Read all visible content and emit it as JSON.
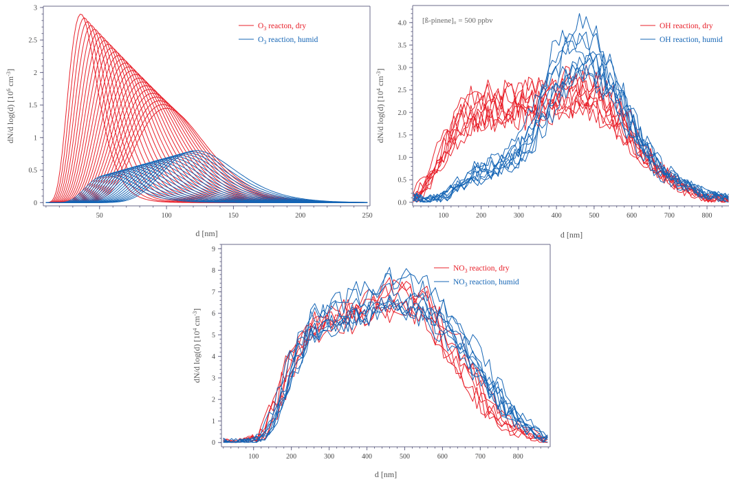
{
  "colors": {
    "dry": "#e8202a",
    "humid": "#1565b5",
    "axis": "#6a6a8a"
  },
  "chart_data": [
    {
      "id": "o3",
      "type": "line",
      "xlabel": "d [nm]",
      "ylabel_parts": [
        "dN/d log(d) [10",
        "6",
        " cm",
        "-3",
        "]"
      ],
      "xlim": [
        8,
        252
      ],
      "ylim": [
        -0.05,
        3.02
      ],
      "xticks": [
        50,
        100,
        150,
        200,
        250
      ],
      "xtick_labels": [
        "50",
        "100",
        "150",
        "200",
        "250"
      ],
      "yticks": [
        0,
        0.5,
        1,
        1.5,
        2,
        2.5,
        3
      ],
      "ytick_labels": [
        "0",
        "0.5",
        "1",
        "1.5",
        "2",
        "2.5",
        "3"
      ],
      "legend": [
        {
          "series": "dry",
          "parts": [
            "O",
            "3",
            " reacton, dry"
          ]
        },
        {
          "series": "humid",
          "parts": [
            "O",
            "3",
            " reaction, humid"
          ]
        }
      ],
      "series": [
        {
          "name": "O3 reacton, dry",
          "family": {
            "shape": "lognormal",
            "count": 26,
            "peak_d": [
              36,
              100
            ],
            "peak_amp": [
              2.9,
              1.45
            ],
            "width": [
              0.3,
              0.26
            ],
            "x_range": [
              10,
              250
            ]
          }
        },
        {
          "name": "O3 reaction, humid",
          "family": {
            "shape": "lognormal",
            "count": 22,
            "peak_d": [
              55,
              122
            ],
            "peak_amp": [
              0.42,
              0.8
            ],
            "width": [
              0.3,
              0.22
            ],
            "x_range": [
              10,
              250
            ]
          }
        }
      ]
    },
    {
      "id": "oh",
      "type": "line",
      "xlabel": "d [nm]",
      "ylabel_parts": [
        "dN/d log(d) [10",
        "4",
        " cm",
        "-3",
        "]"
      ],
      "annotation": "[ß-pinene]₀ = 500 ppbv",
      "xlim": [
        18,
        862
      ],
      "ylim": [
        -0.08,
        4.38
      ],
      "xticks": [
        100,
        200,
        300,
        400,
        500,
        600,
        700,
        800
      ],
      "xtick_labels": [
        "100",
        "200",
        "300",
        "400",
        "500",
        "600",
        "700",
        "800"
      ],
      "yticks": [
        0,
        0.5,
        1,
        1.5,
        2,
        2.5,
        3,
        3.5,
        4
      ],
      "ytick_labels": [
        "0.0",
        "0.5",
        "1.0",
        "1.5",
        "2.0",
        "2.5",
        "3.0",
        "3.5",
        "4.0"
      ],
      "legend": [
        {
          "series": "dry",
          "parts": [
            "OH reaction, dry"
          ]
        },
        {
          "series": "humid",
          "parts": [
            "OH reaction, humid"
          ]
        }
      ],
      "series": [
        {
          "name": "OH reaction, dry",
          "envelope": {
            "x": [
              20,
              60,
              100,
              150,
              200,
              260,
              320,
              380,
              440,
              500,
              560,
              620,
              680,
              740,
              800,
              860
            ],
            "y": [
              0.1,
              0.5,
              1.2,
              1.9,
              2.1,
              2.15,
              2.2,
              2.25,
              2.4,
              2.4,
              1.9,
              1.2,
              0.65,
              0.3,
              0.1,
              0.05
            ]
          },
          "curve_count": 9,
          "noise": 0.45
        },
        {
          "name": "OH reaction, humid",
          "envelope": {
            "x": [
              20,
              60,
              100,
              150,
              200,
              260,
              320,
              360,
              400,
              440,
              480,
              520,
              560,
              620,
              680,
              740,
              800,
              860
            ],
            "y": [
              0.15,
              0.05,
              0.1,
              0.4,
              0.7,
              0.9,
              1.3,
              2.0,
              2.9,
              3.4,
              3.6,
              3.3,
              2.7,
              1.6,
              0.8,
              0.45,
              0.2,
              0.1
            ]
          },
          "curve_count": 9,
          "noise": 0.45
        }
      ]
    },
    {
      "id": "no3",
      "type": "line",
      "xlabel": "d [nm]",
      "ylabel_parts": [
        "dN/d log(d) [10",
        "4",
        " cm",
        "-3",
        "]"
      ],
      "xlim": [
        15,
        885
      ],
      "ylim": [
        -0.2,
        9.2
      ],
      "xticks": [
        100,
        200,
        300,
        400,
        500,
        600,
        700,
        800
      ],
      "xtick_labels": [
        "100",
        "200",
        "300",
        "400",
        "500",
        "600",
        "700",
        "800"
      ],
      "yticks": [
        0,
        1,
        2,
        3,
        4,
        5,
        6,
        7,
        8,
        9
      ],
      "ytick_labels": [
        "0",
        "1",
        "2",
        "3",
        "4",
        "5",
        "6",
        "7",
        "8",
        "9"
      ],
      "legend": [
        {
          "series": "dry",
          "parts": [
            "NO",
            "3",
            " reaction, dry"
          ]
        },
        {
          "series": "humid",
          "parts": [
            "NO",
            "3",
            " reaction, humid"
          ]
        }
      ],
      "series": [
        {
          "name": "NO3 reaction, dry",
          "envelope": {
            "x": [
              20,
              60,
              100,
              130,
              160,
              200,
              250,
              300,
              350,
              400,
              450,
              500,
              550,
              600,
              650,
              700,
              750,
              800,
              850,
              880
            ],
            "y": [
              0.05,
              0.02,
              0.1,
              0.4,
              1.6,
              3.8,
              5.4,
              5.8,
              6.0,
              6.4,
              6.8,
              7.0,
              6.6,
              5.4,
              4.0,
              2.4,
              1.2,
              0.6,
              0.2,
              0.1
            ]
          },
          "curve_count": 6,
          "noise": 0.9
        },
        {
          "name": "NO3 reaction, humid",
          "envelope": {
            "x": [
              20,
              60,
              100,
              130,
              160,
              200,
              250,
              300,
              350,
              400,
              450,
              500,
              550,
              600,
              650,
              700,
              750,
              800,
              850,
              880
            ],
            "y": [
              0.05,
              0.02,
              0.08,
              0.3,
              1.4,
              3.5,
              5.2,
              5.7,
              5.9,
              6.2,
              6.6,
              6.6,
              6.3,
              5.5,
              4.5,
              3.2,
              2.0,
              1.0,
              0.35,
              0.15
            ]
          },
          "curve_count": 8,
          "noise": 0.8
        }
      ]
    }
  ]
}
